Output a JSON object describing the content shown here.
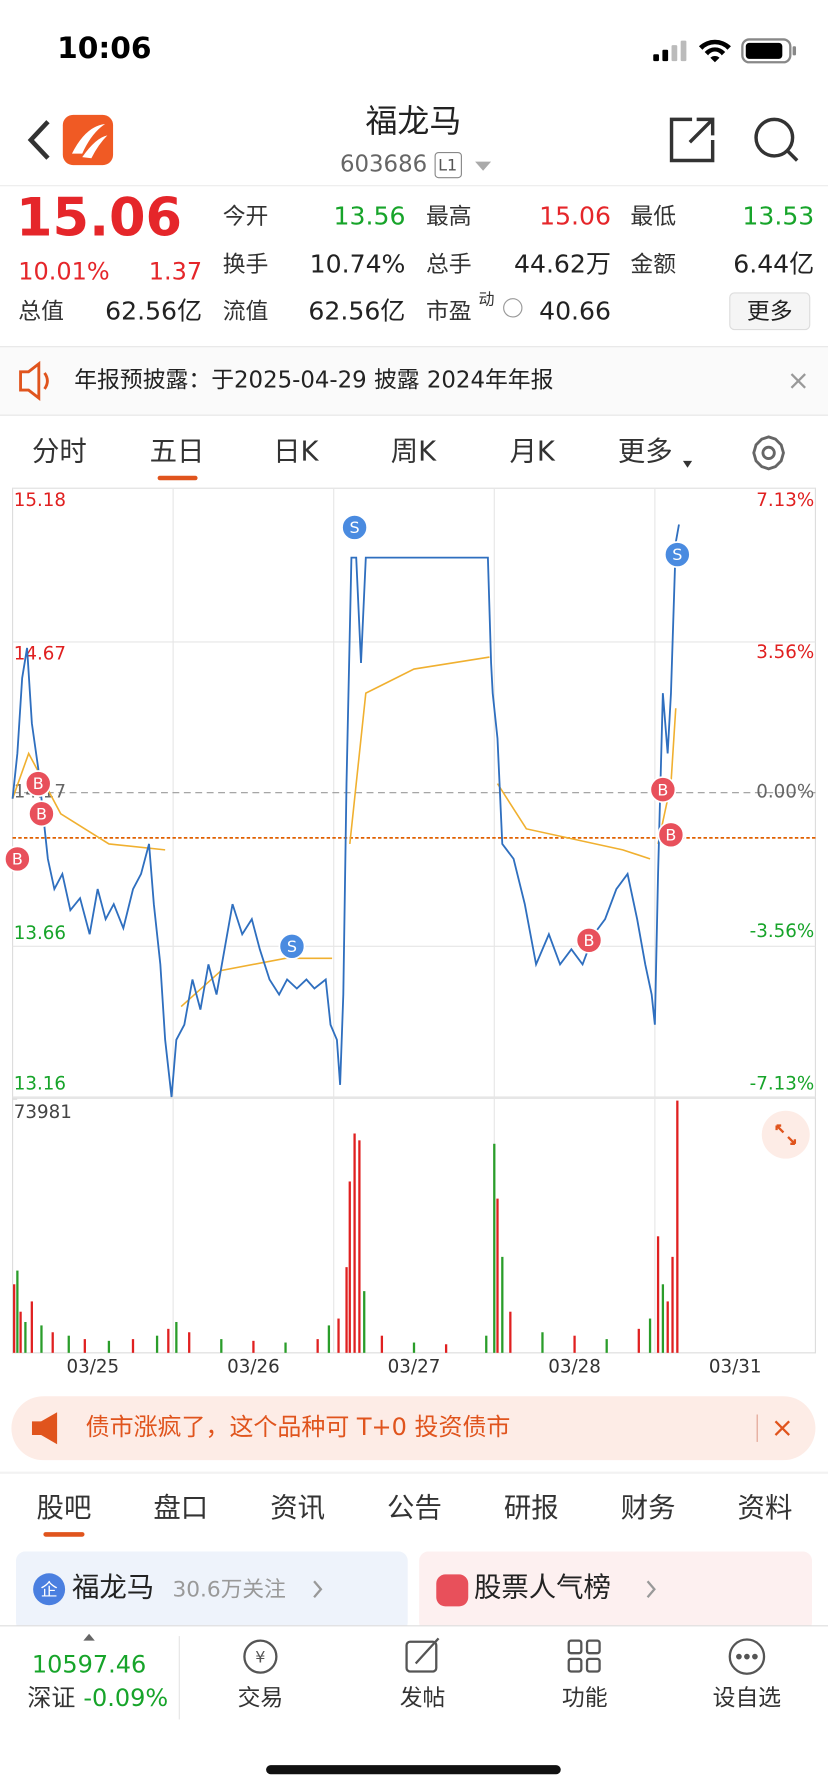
{
  "status": {
    "time": "10:06"
  },
  "header": {
    "title": "福龙马",
    "code": "603686",
    "level": "L1"
  },
  "quote": {
    "price": "15.06",
    "change_pct": "10.01%",
    "change": "1.37",
    "fields": [
      {
        "label": "今开",
        "value": "13.56"
      },
      {
        "label": "最高",
        "value": "15.06"
      },
      {
        "label": "最低",
        "value": "13.53"
      },
      {
        "label": "换手",
        "value": "10.74%"
      },
      {
        "label": "总手",
        "value": "44.62万"
      },
      {
        "label": "金额",
        "value": "6.44亿"
      },
      {
        "label": "总值",
        "value": "62.56亿"
      },
      {
        "label": "流值",
        "value": "62.56亿"
      }
    ],
    "pe": {
      "label": "市盈",
      "sup": "动",
      "value": "40.66"
    },
    "more": "更多"
  },
  "notice": {
    "text": "年报预披露：于2025-04-29 披露 2024年年报"
  },
  "tabs": [
    "分时",
    "五日",
    "日K",
    "周K",
    "月K",
    "更多"
  ],
  "chart_data": {
    "type": "line",
    "categories": [
      "03/25",
      "03/26",
      "03/27",
      "03/28",
      "03/31"
    ],
    "xlim": [
      0,
      5
    ],
    "ylim": [
      13.16,
      15.18
    ],
    "yticks": [
      15.18,
      14.67,
      14.17,
      13.66,
      13.16
    ],
    "prev_close": 14.17,
    "cost_line": 14.02,
    "y2lim": [
      -7.13,
      7.13
    ],
    "y2ticks": [
      {
        "value": 7.13,
        "label": "7.13%"
      },
      {
        "value": 3.56,
        "label": "3.56%"
      },
      {
        "value": 0,
        "label": "0.00%"
      },
      {
        "value": -3.56,
        "label": "-3.56%"
      },
      {
        "value": -7.13,
        "label": "-7.13%"
      }
    ],
    "series": [
      {
        "color": "#2f6fbf",
        "x": [
          0,
          0.03,
          0.06,
          0.09,
          0.12,
          0.16,
          0.19,
          0.22,
          0.26,
          0.31,
          0.36,
          0.42,
          0.48,
          0.53,
          0.58,
          0.63,
          0.69,
          0.75,
          0.8,
          0.85,
          0.88,
          0.92,
          0.95,
          0.99,
          1.02,
          1.07,
          1.12,
          1.17,
          1.22,
          1.27,
          1.32,
          1.37,
          1.43,
          1.49,
          1.54,
          1.6,
          1.66,
          1.71,
          1.77,
          1.83,
          1.88,
          1.95,
          1.98,
          2.02,
          2.04,
          2.06,
          2.08,
          2.11,
          2.14,
          2.17,
          2.2,
          2.48,
          2.77,
          2.96,
          2.98,
          2.99,
          3.02,
          3.05,
          3.12,
          3.19,
          3.26,
          3.34,
          3.41,
          3.48,
          3.55,
          3.62,
          3.69,
          3.76,
          3.83,
          3.89,
          3.94,
          3.98,
          4.0,
          4.02,
          4.05,
          4.08,
          4.1,
          4.13,
          4.15
        ],
        "values": [
          14.15,
          14.3,
          14.55,
          14.65,
          14.4,
          14.25,
          14.1,
          13.95,
          13.85,
          13.9,
          13.78,
          13.82,
          13.7,
          13.85,
          13.75,
          13.8,
          13.72,
          13.85,
          13.9,
          14.0,
          13.8,
          13.6,
          13.35,
          13.16,
          13.35,
          13.4,
          13.55,
          13.45,
          13.6,
          13.5,
          13.65,
          13.8,
          13.7,
          13.75,
          13.65,
          13.55,
          13.5,
          13.55,
          13.52,
          13.55,
          13.52,
          13.55,
          13.4,
          13.35,
          13.2,
          13.5,
          14.2,
          14.95,
          14.95,
          14.6,
          14.95,
          14.95,
          14.95,
          14.95,
          14.6,
          14.5,
          14.35,
          14.0,
          13.95,
          13.8,
          13.6,
          13.7,
          13.6,
          13.65,
          13.6,
          13.7,
          13.75,
          13.85,
          13.9,
          13.75,
          13.6,
          13.5,
          13.4,
          13.9,
          14.5,
          14.3,
          14.5,
          15.0,
          15.06
        ]
      },
      {
        "color": "#f0b030",
        "x": [
          0,
          0.1,
          0.3,
          0.6,
          0.95,
          1.0,
          1.05,
          1.3,
          1.7,
          1.99,
          2.0,
          2.1,
          2.2,
          2.5,
          2.97,
          3.0,
          3.02,
          3.2,
          3.8,
          3.97,
          4.0,
          4.02,
          4.1,
          4.13
        ],
        "values": [
          14.15,
          14.3,
          14.1,
          14.0,
          13.98,
          null,
          13.46,
          13.58,
          13.62,
          13.62,
          null,
          14.0,
          14.5,
          14.58,
          14.62,
          null,
          14.2,
          14.05,
          13.98,
          13.95,
          null,
          14.0,
          14.2,
          14.45
        ]
      }
    ],
    "markers": [
      {
        "x": 0.03,
        "y": 13.95,
        "label": "B"
      },
      {
        "x": 0.16,
        "y": 14.2,
        "label": "B"
      },
      {
        "x": 0.18,
        "y": 14.1,
        "label": "B"
      },
      {
        "x": 2.13,
        "y": 15.05,
        "label": "S"
      },
      {
        "x": 1.74,
        "y": 13.66,
        "label": "S"
      },
      {
        "x": 3.59,
        "y": 13.68,
        "label": "B"
      },
      {
        "x": 4.05,
        "y": 14.18,
        "label": "B"
      },
      {
        "x": 4.1,
        "y": 14.03,
        "label": "B"
      },
      {
        "x": 4.14,
        "y": 14.96,
        "label": "S"
      }
    ],
    "volume": {
      "ylim": [
        0,
        73981
      ],
      "yticks": [
        73981
      ],
      "x": [
        0.01,
        0.03,
        0.05,
        0.08,
        0.12,
        0.18,
        0.25,
        0.35,
        0.45,
        0.6,
        0.75,
        0.9,
        0.97,
        1.02,
        1.1,
        1.3,
        1.5,
        1.7,
        1.9,
        1.97,
        2.03,
        2.08,
        2.1,
        2.13,
        2.16,
        2.19,
        2.3,
        2.5,
        2.7,
        2.95,
        3.0,
        3.02,
        3.05,
        3.1,
        3.3,
        3.5,
        3.7,
        3.9,
        3.97,
        4.02,
        4.05,
        4.08,
        4.11,
        4.14
      ],
      "values": [
        20000,
        24000,
        12000,
        9000,
        15000,
        8000,
        6000,
        5000,
        4000,
        3500,
        4000,
        5000,
        7000,
        9000,
        6000,
        4000,
        3500,
        3000,
        4000,
        8000,
        10000,
        25000,
        50000,
        64000,
        62000,
        18000,
        5000,
        3000,
        2500,
        5000,
        61000,
        45000,
        28000,
        12000,
        6000,
        5000,
        4000,
        7000,
        10000,
        34000,
        20000,
        15000,
        28000,
        73600
      ],
      "colors": [
        "#e02020",
        "#2a9d2a",
        "#e02020",
        "#2a9d2a",
        "#e02020",
        "#2a9d2a",
        "#e02020",
        "#2a9d2a",
        "#e02020",
        "#2a9d2a",
        "#e02020",
        "#2a9d2a",
        "#e02020",
        "#2a9d2a",
        "#e02020",
        "#2a9d2a",
        "#e02020",
        "#2a9d2a",
        "#e02020",
        "#2a9d2a",
        "#e02020",
        "#e02020",
        "#e02020",
        "#e02020",
        "#e02020",
        "#2a9d2a",
        "#e02020",
        "#2a9d2a",
        "#e02020",
        "#2a9d2a",
        "#2a9d2a",
        "#e02020",
        "#2a9d2a",
        "#e02020",
        "#2a9d2a",
        "#e02020",
        "#2a9d2a",
        "#e02020",
        "#2a9d2a",
        "#e02020",
        "#2a9d2a",
        "#e02020",
        "#e02020",
        "#e02020"
      ]
    }
  },
  "banner": {
    "text": "债市涨疯了，这个品种可 T+0 投资债市"
  },
  "sections": [
    "股吧",
    "盘口",
    "资讯",
    "公告",
    "研报",
    "财务",
    "资料"
  ],
  "cards": [
    {
      "title": "福龙马",
      "sub": "30.6万关注"
    },
    {
      "title": "股票人气榜"
    }
  ],
  "bottom": {
    "index_value": "10597.46",
    "index_name": "深证",
    "index_change": "-0.09%",
    "actions": [
      "交易",
      "发帖",
      "功能",
      "设自选"
    ]
  }
}
